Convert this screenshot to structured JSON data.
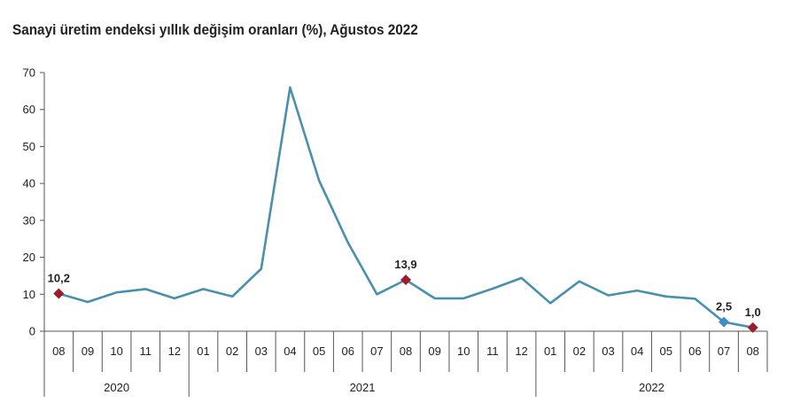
{
  "chart_data": {
    "type": "line",
    "title": "Sanayi üretim endeksi yıllık değişim oranları (%), Ağustos 2022",
    "xlabel": "",
    "ylabel": "",
    "ylim": [
      0,
      70
    ],
    "yticks": [
      0,
      10,
      20,
      30,
      40,
      50,
      60,
      70
    ],
    "grid": false,
    "legend": "none",
    "categories": [
      "08",
      "09",
      "10",
      "11",
      "12",
      "01",
      "02",
      "03",
      "04",
      "05",
      "06",
      "07",
      "08",
      "09",
      "10",
      "11",
      "12",
      "01",
      "02",
      "03",
      "04",
      "05",
      "06",
      "07",
      "08"
    ],
    "years": [
      {
        "label": "2020",
        "start": 0,
        "end": 4
      },
      {
        "label": "2021",
        "start": 5,
        "end": 16
      },
      {
        "label": "2022",
        "start": 17,
        "end": 24
      }
    ],
    "series": [
      {
        "values": [
          10.2,
          7.9,
          10.5,
          11.4,
          8.9,
          11.4,
          9.4,
          16.9,
          66.0,
          40.8,
          24.0,
          10.0,
          13.9,
          8.9,
          8.9,
          11.5,
          14.4,
          7.6,
          13.5,
          9.7,
          11.0,
          9.4,
          8.8,
          2.5,
          1.0
        ]
      }
    ],
    "annotations": [
      {
        "index": 0,
        "text": "10,2"
      },
      {
        "index": 12,
        "text": "13,9"
      },
      {
        "index": 23,
        "text": "2,5"
      },
      {
        "index": 24,
        "text": "1,0"
      }
    ],
    "colors": {
      "line": "#4a90ac",
      "marker_red": "#9c1c2a",
      "marker_blue": "#3a8fc4",
      "axis": "#555555",
      "text": "#222222"
    },
    "marker_colors": {
      "0": "#9c1c2a",
      "12": "#9c1c2a",
      "23": "#3a8fc4",
      "24": "#9c1c2a"
    }
  }
}
